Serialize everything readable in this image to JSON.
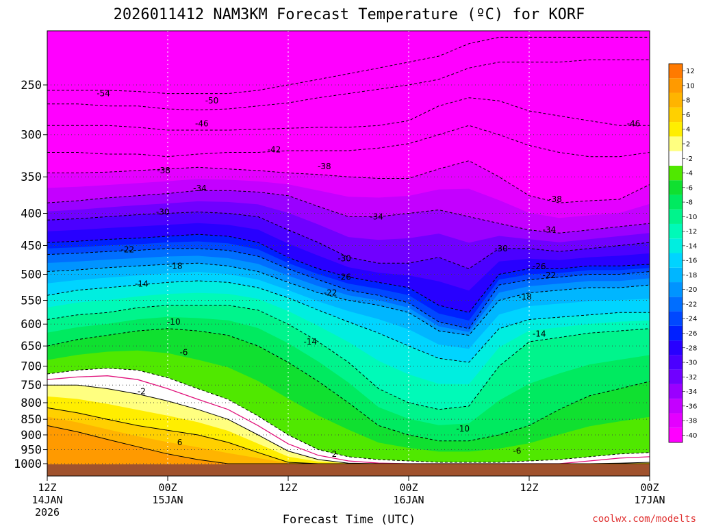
{
  "chart_data": {
    "type": "heatmap",
    "title": "2026011412 NAM3KM Forecast Temperature (ºC) for KORF",
    "xlabel": "Forecast Time (UTC)",
    "ylabel": "",
    "credit": "coolwx.com/modelts",
    "y_scale": "log",
    "y_inverted": true,
    "ylim": [
      1000,
      200
    ],
    "xlim": [
      0,
      60
    ],
    "y_ticks": [
      250,
      300,
      350,
      400,
      450,
      500,
      550,
      600,
      650,
      700,
      750,
      800,
      850,
      900,
      950,
      1000
    ],
    "x_ticks": [
      {
        "hours": 0,
        "lines": [
          "12Z",
          "14JAN",
          "2026"
        ]
      },
      {
        "hours": 12,
        "lines": [
          "00Z",
          "15JAN"
        ]
      },
      {
        "hours": 24,
        "lines": [
          "12Z"
        ]
      },
      {
        "hours": 36,
        "lines": [
          "00Z",
          "16JAN"
        ]
      },
      {
        "hours": 48,
        "lines": [
          "12Z"
        ]
      },
      {
        "hours": 60,
        "lines": [
          "00Z",
          "17JAN"
        ]
      }
    ],
    "colorbar": {
      "colors": [
        "#ff00ff",
        "#e400ff",
        "#c400ff",
        "#9a00ff",
        "#7000ff",
        "#4b00ff",
        "#2800ff",
        "#0020ff",
        "#0048ff",
        "#006eff",
        "#0094ff",
        "#00b6ff",
        "#00d4ff",
        "#00eee0",
        "#00fab8",
        "#00f48c",
        "#00ea60",
        "#10e030",
        "#50e800",
        "#ffffff",
        "#ffff80",
        "#ffee00",
        "#ffd000",
        "#ffb400",
        "#ff9a00",
        "#ff7a00"
      ],
      "labels": [
        "-40",
        "-38",
        "-36",
        "-34",
        "-32",
        "-30",
        "-28",
        "-26",
        "-24",
        "-22",
        "-20",
        "-18",
        "-16",
        "-14",
        "-12",
        "-10",
        "-8",
        "-6",
        "-4",
        "-2",
        "2",
        "4",
        "6",
        "8",
        "10",
        "12"
      ]
    },
    "x_hours": [
      0,
      3,
      6,
      9,
      12,
      15,
      18,
      21,
      24,
      27,
      30,
      33,
      36,
      39,
      42,
      45,
      48,
      51,
      54,
      57,
      60
    ],
    "isotherm_pressures": {
      "-54": [
        255,
        255,
        255,
        256,
        258,
        258,
        258,
        255,
        250,
        245,
        240,
        235,
        230,
        225,
        215,
        210,
        210,
        210,
        210,
        210,
        210
      ],
      "-50": [
        268,
        268,
        270,
        270,
        273,
        274,
        273,
        270,
        267,
        262,
        258,
        254,
        250,
        245,
        235,
        230,
        230,
        230,
        228,
        228,
        228
      ],
      "-46": [
        290,
        290,
        290,
        292,
        295,
        295,
        295,
        294,
        293,
        292,
        292,
        290,
        285,
        270,
        262,
        265,
        275,
        280,
        285,
        290,
        290
      ],
      "-42": [
        320,
        320,
        322,
        322,
        325,
        322,
        320,
        320,
        318,
        318,
        318,
        315,
        310,
        300,
        290,
        300,
        312,
        320,
        325,
        325,
        320
      ],
      "-38": [
        345,
        345,
        344,
        342,
        340,
        338,
        340,
        342,
        345,
        347,
        350,
        352,
        352,
        340,
        330,
        350,
        375,
        385,
        382,
        380,
        360
      ],
      "-34": [
        385,
        382,
        378,
        375,
        372,
        368,
        368,
        370,
        375,
        390,
        405,
        405,
        400,
        395,
        405,
        415,
        425,
        430,
        425,
        420,
        415
      ],
      "-30": [
        410,
        408,
        405,
        402,
        400,
        398,
        400,
        405,
        425,
        445,
        470,
        480,
        480,
        470,
        490,
        455,
        455,
        460,
        455,
        450,
        445
      ],
      "-26": [
        445,
        443,
        440,
        438,
        435,
        432,
        435,
        445,
        470,
        490,
        505,
        515,
        525,
        560,
        575,
        500,
        490,
        490,
        485,
        485,
        482
      ],
      "-22": [
        465,
        463,
        460,
        458,
        455,
        455,
        458,
        468,
        490,
        510,
        530,
        540,
        555,
        595,
        610,
        520,
        510,
        505,
        500,
        500,
        495
      ],
      "-18": [
        495,
        492,
        488,
        485,
        482,
        480,
        485,
        495,
        515,
        535,
        550,
        560,
        575,
        615,
        625,
        550,
        535,
        530,
        525,
        525,
        520
      ],
      "-14": [
        540,
        530,
        525,
        520,
        515,
        512,
        515,
        525,
        545,
        570,
        595,
        620,
        650,
        680,
        690,
        610,
        590,
        585,
        580,
        575,
        575
      ],
      "-10": [
        590,
        580,
        575,
        565,
        560,
        560,
        560,
        570,
        600,
        640,
        690,
        760,
        800,
        820,
        810,
        700,
        640,
        630,
        620,
        615,
        610
      ],
      "-6": [
        650,
        635,
        625,
        615,
        610,
        615,
        625,
        650,
        690,
        740,
        800,
        870,
        900,
        920,
        920,
        900,
        870,
        820,
        780,
        760,
        740
      ],
      "-2": [
        720,
        710,
        705,
        710,
        730,
        760,
        790,
        840,
        900,
        950,
        975,
        985,
        990,
        995,
        995,
        995,
        990,
        985,
        975,
        965,
        960
      ],
      "0": [
        735,
        728,
        725,
        735,
        760,
        790,
        820,
        870,
        930,
        970,
        990,
        998,
        1000,
        1000,
        1000,
        1000,
        1000,
        1000,
        990,
        980,
        975
      ],
      "2": [
        750,
        750,
        760,
        775,
        795,
        820,
        850,
        900,
        955,
        985,
        998,
        1000,
        1000,
        1000,
        1000,
        1000,
        1000,
        1000,
        1000,
        998,
        995
      ],
      "6": [
        815,
        830,
        850,
        870,
        885,
        900,
        925,
        960,
        995,
        1000,
        1000,
        1000,
        1000,
        1000,
        1000,
        1000,
        1000,
        1000,
        1000,
        1000,
        1000
      ],
      "10": [
        870,
        890,
        915,
        940,
        965,
        985,
        1000,
        1000,
        1000,
        1000,
        1000,
        1000,
        1000,
        1000,
        1000,
        1000,
        1000,
        1000,
        1000,
        1000,
        1000
      ]
    },
    "contour_labels": [
      {
        "text": "-54",
        "hours": 5.6,
        "p": 258
      },
      {
        "text": "-50",
        "hours": 16.4,
        "p": 265
      },
      {
        "text": "-46",
        "hours": 15.4,
        "p": 288
      },
      {
        "text": "-46",
        "hours": 58.4,
        "p": 288
      },
      {
        "text": "-42",
        "hours": 22.6,
        "p": 317
      },
      {
        "text": "-38",
        "hours": 11.6,
        "p": 342
      },
      {
        "text": "-38",
        "hours": 27.6,
        "p": 337
      },
      {
        "text": "-38",
        "hours": 50.6,
        "p": 380
      },
      {
        "text": "-34",
        "hours": 15.2,
        "p": 365
      },
      {
        "text": "-34",
        "hours": 32.8,
        "p": 405
      },
      {
        "text": "-34",
        "hours": 50.0,
        "p": 425
      },
      {
        "text": "-30",
        "hours": 11.5,
        "p": 398
      },
      {
        "text": "-30",
        "hours": 29.6,
        "p": 472
      },
      {
        "text": "-30",
        "hours": 45.2,
        "p": 455
      },
      {
        "text": "-26",
        "hours": 29.6,
        "p": 505
      },
      {
        "text": "-26",
        "hours": 49.0,
        "p": 486
      },
      {
        "text": "-22",
        "hours": 8.0,
        "p": 457
      },
      {
        "text": "-22",
        "hours": 28.2,
        "p": 535
      },
      {
        "text": "-22",
        "hours": 50.0,
        "p": 502
      },
      {
        "text": "-18",
        "hours": 12.8,
        "p": 485
      },
      {
        "text": "-18",
        "hours": 47.6,
        "p": 543
      },
      {
        "text": "-14",
        "hours": 9.4,
        "p": 518
      },
      {
        "text": "-14",
        "hours": 26.2,
        "p": 640
      },
      {
        "text": "-14",
        "hours": 49.0,
        "p": 622
      },
      {
        "text": "-10",
        "hours": 12.6,
        "p": 595
      },
      {
        "text": "-10",
        "hours": 41.4,
        "p": 880
      },
      {
        "text": "-6",
        "hours": 13.6,
        "p": 665
      },
      {
        "text": "-6",
        "hours": 46.8,
        "p": 955
      },
      {
        "text": "-2",
        "hours": 9.4,
        "p": 768
      },
      {
        "text": "2",
        "hours": 28.6,
        "p": 965
      },
      {
        "text": "6",
        "hours": 13.2,
        "p": 925
      }
    ],
    "grid": true
  }
}
